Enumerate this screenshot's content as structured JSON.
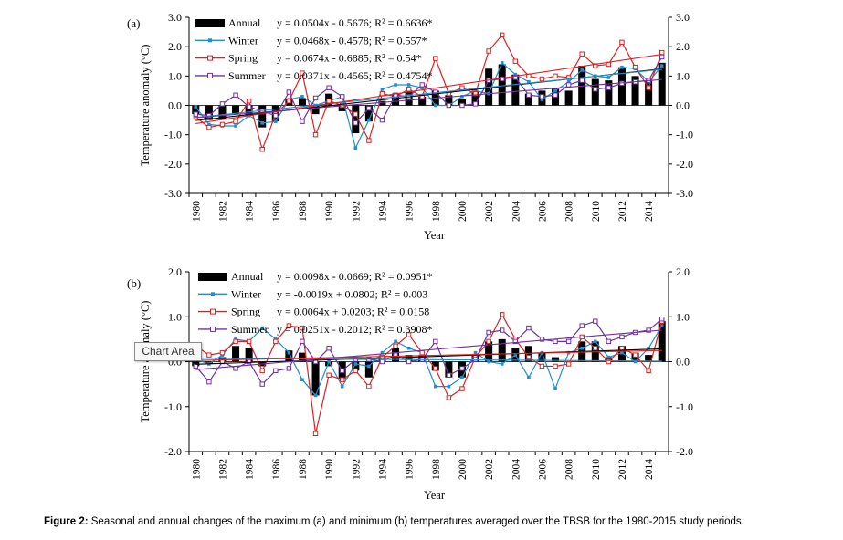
{
  "caption": {
    "label": "Figure 2:",
    "text": "Seasonal and annual changes of the maximum (a) and minimum (b) temperatures averaged over the TBSB for the 1980-2015 study periods."
  },
  "tooltip": "Chart Area",
  "colors": {
    "annual": "#000000",
    "winter": "#1f8fd0",
    "spring": "#e02020",
    "summer": "#7030a0"
  },
  "chart_data": [
    {
      "type": "bar",
      "panel_label": "(a)",
      "ylabel": "Temperature anomaly (°C)",
      "xlabel": "Year",
      "ylim": [
        -3.0,
        3.0
      ],
      "yticks": [
        "3.0",
        "2.0",
        "1.0",
        "0.0",
        "-1.0",
        "-2.0",
        "-3.0"
      ],
      "ytick_values": [
        3,
        2,
        1,
        0,
        -1,
        -2,
        -3
      ],
      "xticks": [
        "1980",
        "1982",
        "1984",
        "1986",
        "1988",
        "1990",
        "1992",
        "1994",
        "1996",
        "1998",
        "2000",
        "2002",
        "2004",
        "2006",
        "2008",
        "2010",
        "2012",
        "2014"
      ],
      "x": [
        1980,
        1981,
        1982,
        1983,
        1984,
        1985,
        1986,
        1987,
        1988,
        1989,
        1990,
        1991,
        1992,
        1993,
        1994,
        1995,
        1996,
        1997,
        1998,
        1999,
        2000,
        2001,
        2002,
        2003,
        2004,
        2005,
        2006,
        2007,
        2008,
        2009,
        2010,
        2011,
        2012,
        2013,
        2014,
        2015
      ],
      "series": [
        {
          "name": "Annual",
          "style": "bar",
          "equation": "y = 0.0504x - 0.5676;  R² = 0.6636*",
          "trend": [
            0.0504,
            -0.5676
          ],
          "values": [
            -0.3,
            -0.5,
            -0.45,
            -0.3,
            -0.35,
            -0.75,
            -0.55,
            0.2,
            0.25,
            -0.3,
            0.4,
            -0.2,
            -0.95,
            -0.55,
            0.15,
            0.4,
            0.45,
            0.3,
            0.5,
            0.35,
            0.2,
            0.5,
            1.25,
            1.4,
            1.05,
            0.4,
            0.5,
            0.6,
            0.5,
            1.35,
            0.9,
            0.85,
            1.3,
            1.0,
            0.85,
            1.45
          ]
        },
        {
          "name": "Winter",
          "style": "line",
          "equation": "y = 0.0468x - 0.4578;  R² = 0.557*",
          "trend": [
            0.0468,
            -0.4578
          ],
          "values": [
            -0.05,
            -0.65,
            -0.7,
            -0.7,
            -0.35,
            -0.6,
            -0.55,
            0.2,
            0.3,
            0.0,
            0.15,
            0.3,
            -1.45,
            -0.5,
            0.55,
            0.7,
            0.7,
            0.6,
            0.0,
            0.0,
            0.3,
            0.5,
            0.4,
            1.45,
            1.05,
            0.8,
            0.2,
            0.5,
            0.8,
            1.2,
            1.0,
            0.95,
            1.3,
            1.25,
            0.8,
            1.35
          ]
        },
        {
          "name": "Spring",
          "style": "line",
          "equation": "y = 0.0674x - 0.6885;  R² = 0.54*",
          "trend": [
            0.0674,
            -0.6885
          ],
          "values": [
            -0.4,
            -0.75,
            -0.65,
            -0.55,
            0.15,
            -1.5,
            -0.3,
            0.15,
            1.1,
            -1.0,
            0.15,
            0.0,
            -0.3,
            -1.2,
            0.4,
            0.3,
            0.55,
            0.3,
            1.6,
            0.4,
            0.6,
            0.4,
            1.85,
            2.4,
            1.5,
            1.0,
            0.9,
            1.0,
            0.95,
            1.75,
            1.35,
            1.4,
            2.15,
            1.3,
            0.6,
            1.8
          ]
        },
        {
          "name": "Summer",
          "style": "line",
          "equation": "y = 0.0371x - 0.4565;  R² = 0.4754*",
          "trend": [
            0.0371,
            -0.4565
          ],
          "values": [
            -0.3,
            -0.35,
            0.05,
            0.35,
            -0.05,
            -0.2,
            -0.35,
            0.45,
            -0.55,
            0.25,
            0.6,
            0.3,
            -0.6,
            -0.1,
            -0.5,
            0.35,
            0.3,
            0.7,
            0.45,
            0.0,
            0.0,
            0.05,
            0.85,
            0.9,
            0.95,
            0.35,
            0.3,
            0.35,
            0.7,
            0.85,
            0.55,
            0.6,
            0.75,
            0.8,
            0.85,
            1.65
          ]
        }
      ]
    },
    {
      "type": "bar",
      "panel_label": "(b)",
      "ylabel": "Temperature anomaly (°C)",
      "xlabel": "Year",
      "ylim": [
        -2.0,
        2.0
      ],
      "yticks": [
        "2.0",
        "1.0",
        "0.0",
        "-1.0",
        "-2.0"
      ],
      "ytick_values": [
        2,
        1,
        0,
        -1,
        -2
      ],
      "xticks": [
        "1980",
        "1982",
        "1984",
        "1986",
        "1988",
        "1990",
        "1992",
        "1994",
        "1996",
        "1998",
        "2000",
        "2002",
        "2004",
        "2006",
        "2008",
        "2010",
        "2012",
        "2014"
      ],
      "x": [
        1980,
        1981,
        1982,
        1983,
        1984,
        1985,
        1986,
        1987,
        1988,
        1989,
        1990,
        1991,
        1992,
        1993,
        1994,
        1995,
        1996,
        1997,
        1998,
        1999,
        2000,
        2001,
        2002,
        2003,
        2004,
        2005,
        2006,
        2007,
        2008,
        2009,
        2010,
        2011,
        2012,
        2013,
        2014,
        2015
      ],
      "series": [
        {
          "name": "Annual",
          "style": "bar",
          "equation": "y = 0.0098x - 0.0669;  R² = 0.0951*",
          "trend": [
            0.0098,
            -0.0669
          ],
          "values": [
            -0.1,
            -0.05,
            0.1,
            0.35,
            0.3,
            -0.1,
            0.0,
            0.25,
            0.2,
            -0.75,
            -0.1,
            -0.4,
            -0.2,
            -0.35,
            0.1,
            0.3,
            0.15,
            0.15,
            -0.2,
            -0.35,
            -0.35,
            0.15,
            0.45,
            0.5,
            0.3,
            0.35,
            0.2,
            0.1,
            0.0,
            0.45,
            0.45,
            0.1,
            0.35,
            0.2,
            0.15,
            0.9
          ]
        },
        {
          "name": "Winter",
          "style": "line",
          "equation": "y = -0.0019x + 0.0802;  R² = 0.003",
          "trend": [
            -0.0019,
            0.0802
          ],
          "values": [
            0.05,
            -0.05,
            0.15,
            0.5,
            0.45,
            0.75,
            0.5,
            0.2,
            -0.4,
            -0.75,
            0.0,
            -0.55,
            -0.05,
            -0.1,
            0.2,
            0.45,
            0.3,
            0.2,
            -0.55,
            -0.55,
            -0.35,
            0.2,
            0.0,
            -0.05,
            0.15,
            -0.35,
            0.2,
            -0.6,
            0.2,
            0.3,
            0.45,
            0.1,
            0.2,
            0.0,
            0.3,
            0.8
          ]
        },
        {
          "name": "Spring",
          "style": "line",
          "equation": "y = 0.0064x + 0.0203;  R² = 0.0158",
          "trend": [
            0.0064,
            0.0203
          ],
          "values": [
            0.35,
            0.15,
            0.2,
            0.45,
            0.45,
            -0.2,
            0.45,
            0.8,
            0.75,
            -1.6,
            -0.3,
            -0.4,
            -0.2,
            -0.55,
            0.1,
            0.35,
            0.6,
            0.2,
            -0.15,
            -0.8,
            -0.6,
            0.1,
            0.45,
            1.05,
            0.5,
            0.1,
            -0.1,
            -0.1,
            -0.05,
            0.55,
            0.3,
            0.0,
            0.3,
            0.15,
            -0.2,
            0.9
          ]
        },
        {
          "name": "Summer",
          "style": "line",
          "equation": "y = 0.0251x - 0.2012;  R² = 0.3908*",
          "trend": [
            0.0251,
            -0.2012
          ],
          "values": [
            -0.1,
            -0.45,
            0.0,
            -0.15,
            0.0,
            -0.5,
            -0.2,
            -0.15,
            0.45,
            0.0,
            0.3,
            -0.2,
            0.05,
            0.05,
            0.0,
            0.15,
            0.0,
            0.05,
            0.45,
            -0.3,
            -0.15,
            0.05,
            0.65,
            0.7,
            0.45,
            0.75,
            0.5,
            0.45,
            0.45,
            0.8,
            0.9,
            0.45,
            0.55,
            0.65,
            0.7,
            0.95
          ]
        }
      ]
    }
  ]
}
